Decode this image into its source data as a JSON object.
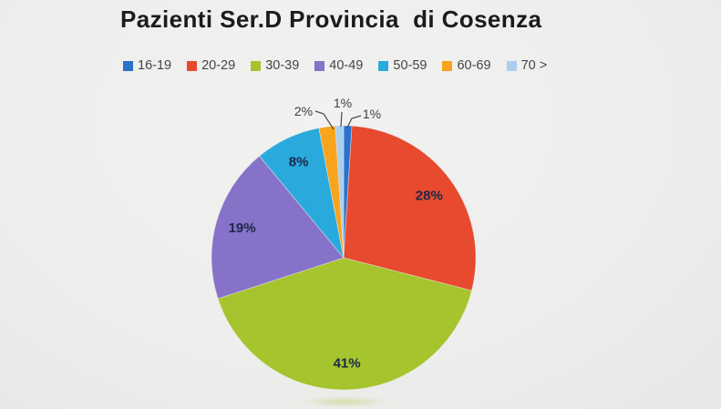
{
  "page": {
    "background": "#eeeeed"
  },
  "chart_data": {
    "type": "pie",
    "title": "Pazienti Ser.D Provincia  di Cosenza",
    "legend_position": "top",
    "start_angle_deg": 0,
    "direction": "clockwise",
    "slices": [
      {
        "label": "16-19",
        "value": 1,
        "pct_label": "1%",
        "color": "#2b72cb"
      },
      {
        "label": "20-29",
        "value": 28,
        "pct_label": "28%",
        "color": "#e74a2f"
      },
      {
        "label": "30-39",
        "value": 41,
        "pct_label": "41%",
        "color": "#a5c42d"
      },
      {
        "label": "40-49",
        "value": 19,
        "pct_label": "19%",
        "color": "#8672c8"
      },
      {
        "label": "50-59",
        "value": 8,
        "pct_label": "8%",
        "color": "#2aa9dd"
      },
      {
        "label": "60-69",
        "value": 2,
        "pct_label": "2%",
        "color": "#f8a41c"
      },
      {
        "label": "70 >",
        "value": 1,
        "pct_label": "1%",
        "color": "#a9cfee"
      }
    ],
    "inside_label_color": "#1c2848",
    "outside_label_color": "#3f3f3f",
    "leader_line_color": "#4a4a4a"
  }
}
